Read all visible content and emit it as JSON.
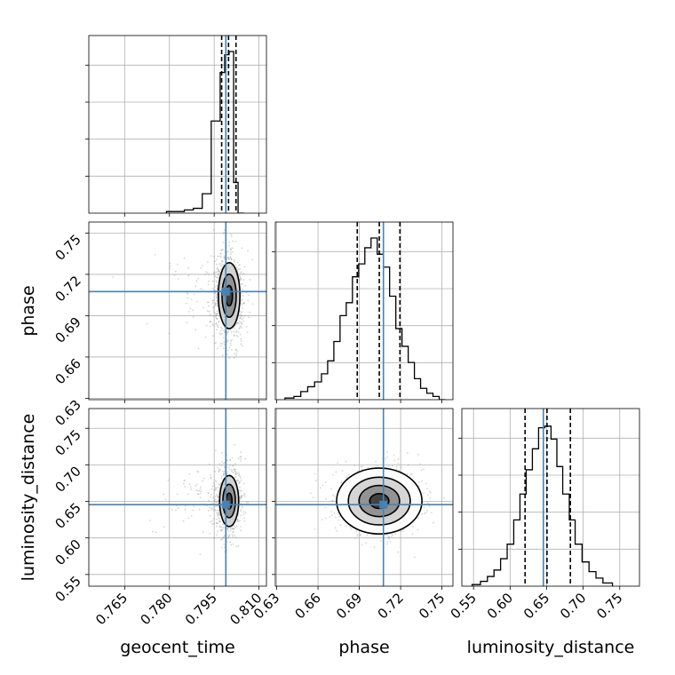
{
  "chart_data": {
    "type": "corner",
    "parameters": [
      "geocent_time",
      "phase",
      "luminosity_distance"
    ],
    "axis_labels": {
      "geocent_time": "geocent_time",
      "phase": "phase",
      "luminosity_distance": "luminosity_distance"
    },
    "ranges": {
      "geocent_time": [
        0.753,
        0.8125
      ],
      "phase": [
        0.629,
        0.758
      ],
      "luminosity_distance": [
        0.534,
        0.777
      ]
    },
    "ticks": {
      "geocent_time": [
        "0.765",
        "0.780",
        "0.795",
        "0.810"
      ],
      "phase": [
        "0.63",
        "0.66",
        "0.69",
        "0.72",
        "0.75"
      ],
      "luminosity_distance": [
        "0.55",
        "0.60",
        "0.65",
        "0.70",
        "0.75"
      ]
    },
    "truths": {
      "geocent_time": 0.7989,
      "phase": 0.7075,
      "luminosity_distance": 0.6455
    },
    "color": "#4682b4",
    "histograms": {
      "geocent_time": {
        "edges": [
          0.779,
          0.782,
          0.785,
          0.788,
          0.791,
          0.794,
          0.797,
          0.7985,
          0.8,
          0.8015,
          0.803,
          0.805
        ],
        "counts": [
          0.01,
          0.01,
          0.02,
          0.03,
          0.12,
          0.57,
          0.87,
          0.98,
          1.0,
          0.19,
          0.0
        ],
        "quantiles": [
          0.7975,
          0.7998,
          0.8023
        ]
      },
      "phase": {
        "edges": [
          0.636,
          0.6425,
          0.6475,
          0.6525,
          0.6575,
          0.6625,
          0.667,
          0.6715,
          0.676,
          0.6805,
          0.685,
          0.6895,
          0.694,
          0.6985,
          0.703,
          0.7075,
          0.712,
          0.7165,
          0.721,
          0.7255,
          0.73,
          0.7345,
          0.739,
          0.7435,
          0.748,
          0.7525
        ],
        "counts": [
          0.01,
          0.02,
          0.05,
          0.08,
          0.11,
          0.16,
          0.24,
          0.36,
          0.52,
          0.6,
          0.76,
          0.84,
          0.94,
          1.0,
          0.9,
          0.82,
          0.64,
          0.44,
          0.33,
          0.23,
          0.13,
          0.07,
          0.04,
          0.02,
          0.0
        ],
        "quantiles": [
          0.6885,
          0.7045,
          0.7195
        ]
      },
      "luminosity_distance": {
        "edges": [
          0.548,
          0.5595,
          0.569,
          0.578,
          0.587,
          0.596,
          0.605,
          0.6135,
          0.622,
          0.6305,
          0.639,
          0.6475,
          0.656,
          0.664,
          0.672,
          0.681,
          0.689,
          0.6985,
          0.708,
          0.7175,
          0.727,
          0.74
        ],
        "counts": [
          0.01,
          0.03,
          0.06,
          0.1,
          0.17,
          0.26,
          0.41,
          0.57,
          0.72,
          0.85,
          0.98,
          0.99,
          0.91,
          0.74,
          0.57,
          0.41,
          0.26,
          0.15,
          0.09,
          0.05,
          0.02
        ],
        "quantiles": [
          0.6205,
          0.6505,
          0.6825
        ]
      }
    },
    "pairs": [
      {
        "x": "geocent_time",
        "y": "phase",
        "mean": [
          0.8,
          0.7045
        ],
        "std": [
          0.0025,
          0.0165
        ],
        "levels": [
          0.35,
          0.65,
          0.9
        ]
      },
      {
        "x": "geocent_time",
        "y": "luminosity_distance",
        "mean": [
          0.8,
          0.6505
        ],
        "std": [
          0.0022,
          0.024
        ],
        "levels": [
          0.35,
          0.65,
          0.9
        ]
      },
      {
        "x": "phase",
        "y": "luminosity_distance",
        "mean": [
          0.7045,
          0.6505
        ],
        "std": [
          0.0155,
          0.0225
        ],
        "levels": [
          0.3,
          0.6,
          0.85,
          0.97
        ]
      }
    ]
  }
}
